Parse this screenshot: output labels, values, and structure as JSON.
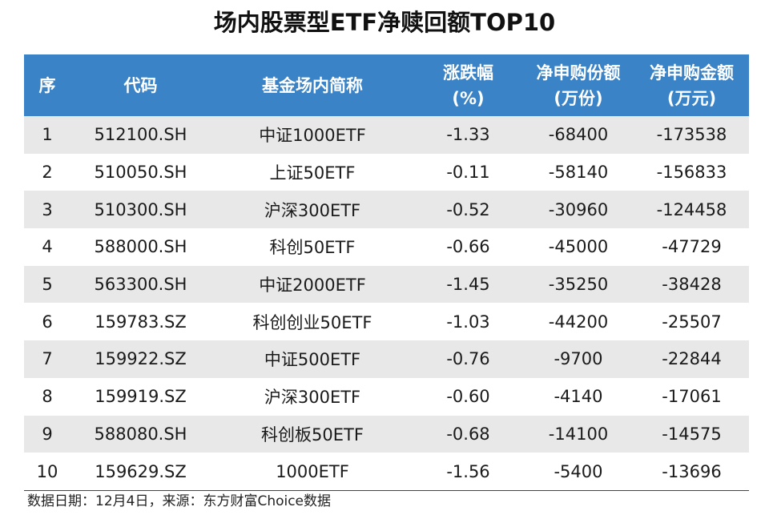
{
  "title": "场内股票型ETF净赎回额TOP10",
  "table": {
    "headers": {
      "idx": "序",
      "code": "代码",
      "name": "基金场内简称",
      "pct_line1": "涨跌幅",
      "pct_line2": "(%)",
      "share_line1": "净申购份额",
      "share_line2": "(万份)",
      "amt_line1": "净申购金额",
      "amt_line2": "(万元)"
    },
    "rows": [
      {
        "idx": "1",
        "code": "512100.SH",
        "name": "中证1000ETF",
        "pct": "-1.33",
        "share": "-68400",
        "amt": "-173538"
      },
      {
        "idx": "2",
        "code": "510050.SH",
        "name": "上证50ETF",
        "pct": "-0.11",
        "share": "-58140",
        "amt": "-156833"
      },
      {
        "idx": "3",
        "code": "510300.SH",
        "name": "沪深300ETF",
        "pct": "-0.52",
        "share": "-30960",
        "amt": "-124458"
      },
      {
        "idx": "4",
        "code": "588000.SH",
        "name": "科创50ETF",
        "pct": "-0.66",
        "share": "-45000",
        "amt": "-47729"
      },
      {
        "idx": "5",
        "code": "563300.SH",
        "name": "中证2000ETF",
        "pct": "-1.45",
        "share": "-35250",
        "amt": "-38428"
      },
      {
        "idx": "6",
        "code": "159783.SZ",
        "name": "科创创业50ETF",
        "pct": "-1.03",
        "share": "-44200",
        "amt": "-25507"
      },
      {
        "idx": "7",
        "code": "159922.SZ",
        "name": "中证500ETF",
        "pct": "-0.76",
        "share": "-9700",
        "amt": "-22844"
      },
      {
        "idx": "8",
        "code": "159919.SZ",
        "name": "沪深300ETF",
        "pct": "-0.60",
        "share": "-4140",
        "amt": "-17061"
      },
      {
        "idx": "9",
        "code": "588080.SH",
        "name": "科创板50ETF",
        "pct": "-0.68",
        "share": "-14100",
        "amt": "-14575"
      },
      {
        "idx": "10",
        "code": "159629.SZ",
        "name": "1000ETF",
        "pct": "-1.56",
        "share": "-5400",
        "amt": "-13696"
      }
    ]
  },
  "footnote": "数据日期：12月4日，来源：东方财富Choice数据",
  "colors": {
    "header_bg": "#3a83c6",
    "header_text": "#ffffff",
    "stripe_bg": "#e8e8e8"
  }
}
